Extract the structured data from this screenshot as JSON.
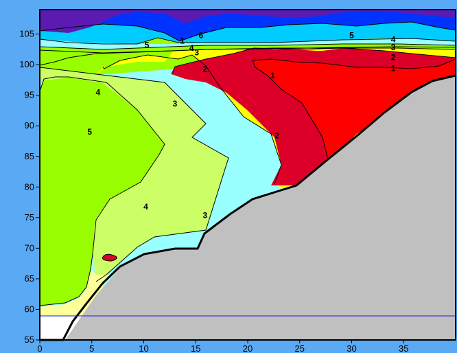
{
  "chart_data": {
    "type": "contour",
    "title": "",
    "xlabel": "",
    "ylabel": "",
    "xlim": [
      0,
      40
    ],
    "ylim": [
      55,
      109
    ],
    "x_ticks": [
      "0",
      "5",
      "10",
      "15",
      "20",
      "25",
      "30",
      "35"
    ],
    "y_ticks": [
      "55",
      "60",
      "65",
      "70",
      "75",
      "80",
      "85",
      "90",
      "95",
      "100",
      "105"
    ],
    "levels": [
      1,
      2,
      3,
      4,
      5,
      6
    ],
    "contour_labels": [
      {
        "text": "1",
        "x": 22.4,
        "y": 98.2
      },
      {
        "text": "1",
        "x": 34,
        "y": 99.4
      },
      {
        "text": "1",
        "x": 13.7,
        "y": 103.9
      },
      {
        "text": "2",
        "x": 22.8,
        "y": 88.4
      },
      {
        "text": "2",
        "x": 15.9,
        "y": 99.3
      },
      {
        "text": "2",
        "x": 34,
        "y": 101.2
      },
      {
        "text": "3",
        "x": 15.9,
        "y": 75.4
      },
      {
        "text": "3",
        "x": 13.0,
        "y": 93.6
      },
      {
        "text": "3",
        "x": 15.1,
        "y": 102.0
      },
      {
        "text": "3",
        "x": 34,
        "y": 102.8
      },
      {
        "text": "4",
        "x": 10.2,
        "y": 76.8
      },
      {
        "text": "4",
        "x": 5.6,
        "y": 95.5
      },
      {
        "text": "4",
        "x": 14.6,
        "y": 102.7
      },
      {
        "text": "4",
        "x": 34,
        "y": 104.1
      },
      {
        "text": "5",
        "x": 4.8,
        "y": 89.0
      },
      {
        "text": "5",
        "x": 10.3,
        "y": 103.2
      },
      {
        "text": "5",
        "x": 30,
        "y": 104.8
      },
      {
        "text": "6",
        "x": 15.5,
        "y": 104.8
      }
    ],
    "fill_colors": {
      "lt1": "#ff0000",
      "1-2": "#dc0028",
      "2-3": "#ffff00",
      "3-4": "#ccff66",
      "4-5": "#99ff00",
      "5-6": "#99ffff",
      "6-7": "#00ccff",
      "7-8": "#0033ff",
      "gt8": "#5b1bb3",
      "bottom_band": "#ffff99",
      "land": "#c0c0c0"
    },
    "grid": false,
    "legend": "none"
  }
}
